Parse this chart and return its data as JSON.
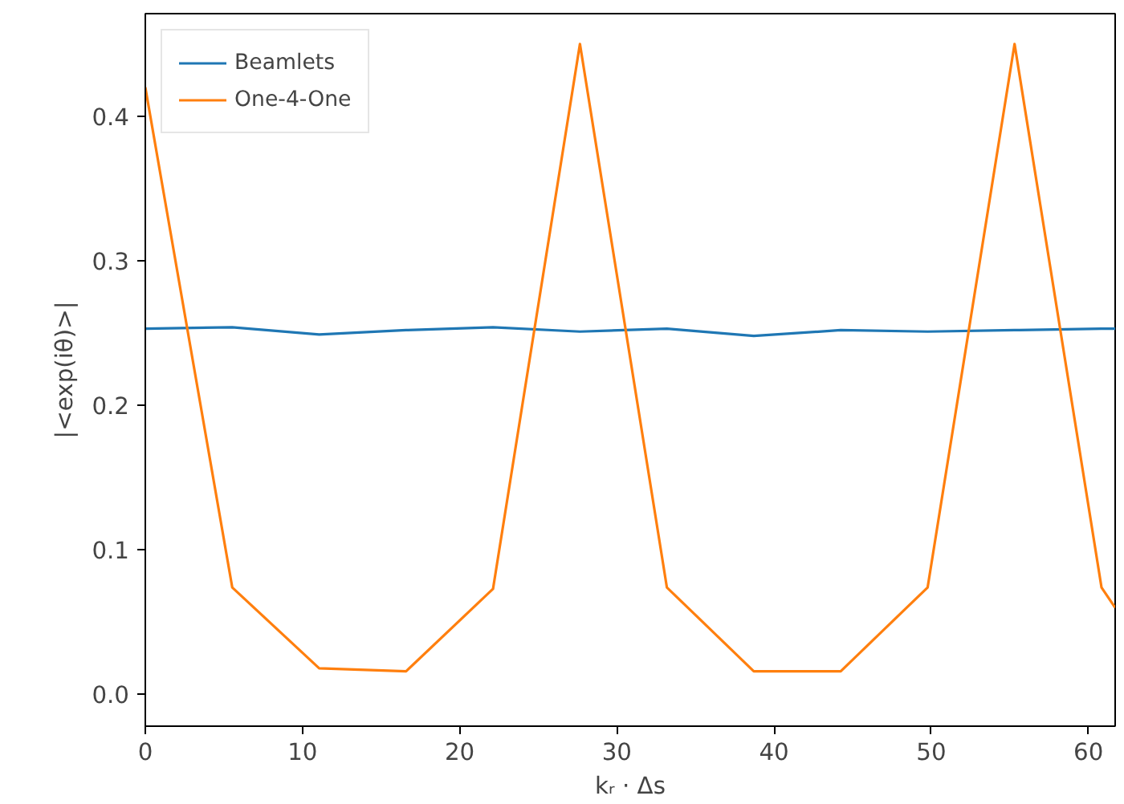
{
  "chart_data": {
    "type": "line",
    "xlabel": "kᵣ · Δs",
    "ylabel": "|<exp(iθ)>|",
    "xlim": [
      0,
      61.7
    ],
    "ylim": [
      -0.022,
      0.471
    ],
    "xticks": [
      0,
      10,
      20,
      30,
      40,
      50,
      60
    ],
    "yticks": [
      {
        "value": 0,
        "label": "0.0"
      },
      0.1,
      0.2,
      0.3,
      0.4
    ],
    "legend": "top left",
    "grid": false,
    "series": [
      {
        "name": "Beamlets",
        "color": "#1f77b4",
        "x": [
          0,
          5.53,
          11.06,
          16.59,
          22.12,
          27.65,
          33.18,
          38.71,
          44.24,
          49.77,
          55.3,
          60.83,
          61.7
        ],
        "values": [
          0.253,
          0.254,
          0.249,
          0.252,
          0.254,
          0.251,
          0.253,
          0.248,
          0.252,
          0.251,
          0.252,
          0.253,
          0.253
        ]
      },
      {
        "name": "One-4-One",
        "color": "#ff7f0e",
        "x": [
          0,
          5.53,
          11.06,
          16.59,
          22.12,
          27.65,
          33.18,
          38.71,
          44.24,
          49.77,
          55.3,
          60.83,
          61.7
        ],
        "values": [
          0.42,
          0.074,
          0.018,
          0.016,
          0.073,
          0.45,
          0.074,
          0.016,
          0.016,
          0.074,
          0.45,
          0.074,
          0.06
        ]
      }
    ]
  }
}
